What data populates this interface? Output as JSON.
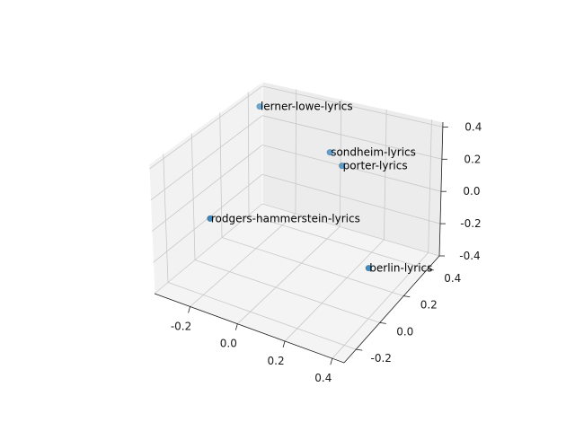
{
  "chart_data": {
    "type": "scatter",
    "projection": "3d",
    "title": "",
    "xlabel": "",
    "ylabel": "",
    "zlabel": "",
    "grid": true,
    "marker_color": "#1f77b4",
    "xlim": [
      -0.35,
      0.45
    ],
    "ylim": [
      -0.3,
      0.5
    ],
    "zlim": [
      -0.4,
      0.43
    ],
    "xticks": [
      "-0.2",
      "0.0",
      "0.2",
      "0.4"
    ],
    "yticks": [
      "-0.2",
      "0.0",
      "0.2",
      "0.4"
    ],
    "zticks": [
      "-0.4",
      "-0.2",
      "0.0",
      "0.2",
      "0.4"
    ],
    "points": [
      {
        "label": "lerner-lowe-lyrics",
        "x": -0.3,
        "y": 0.4,
        "z": 0.35
      },
      {
        "label": "sondheim-lyrics",
        "x": 0.05,
        "y": 0.33,
        "z": 0.22
      },
      {
        "label": "porter-lyrics",
        "x": 0.12,
        "y": 0.3,
        "z": 0.18
      },
      {
        "label": "rodgers-hammerstein-lyrics",
        "x": -0.25,
        "y": -0.05,
        "z": -0.05
      },
      {
        "label": "berlin-lyrics",
        "x": 0.4,
        "y": 0.0,
        "z": -0.12
      }
    ]
  }
}
